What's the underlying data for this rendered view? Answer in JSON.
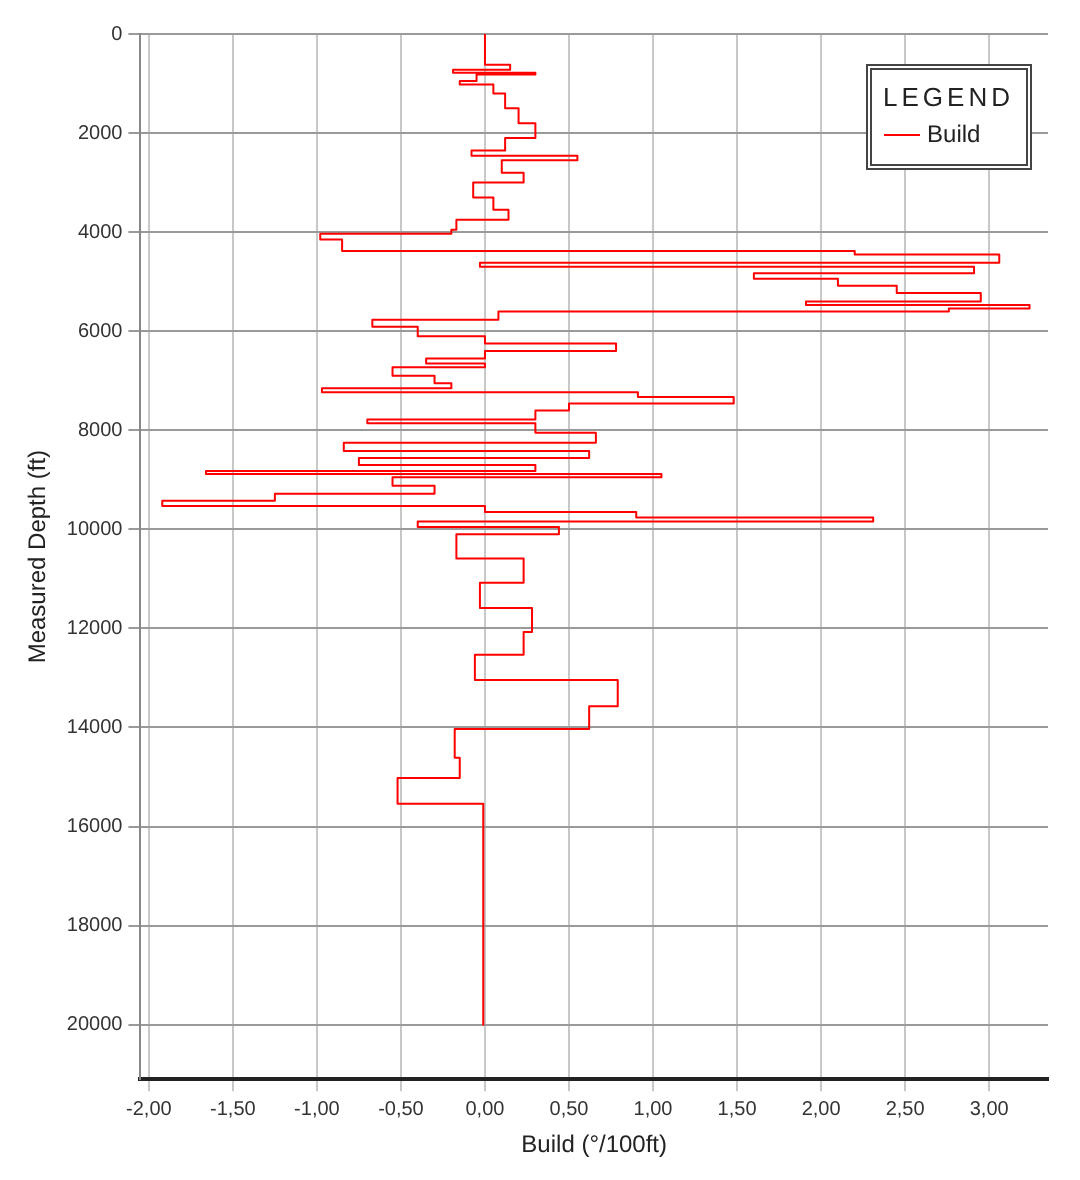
{
  "chart_data": {
    "type": "line",
    "xlabel": "Build (°/100ft)",
    "ylabel": "Measured Depth (ft)",
    "legend_title": "LEGEND",
    "legend": "top right",
    "grid": true,
    "marker": "none",
    "line_style": "solid",
    "xlim": [
      -2.05,
      3.35
    ],
    "ylim": [
      21100,
      0
    ],
    "xticks": [
      {
        "value": -2,
        "label": "-2,00"
      },
      {
        "value": -1.5,
        "label": "-1,50"
      },
      {
        "value": -1,
        "label": "-1,00"
      },
      {
        "value": -0.5,
        "label": "-0,50"
      },
      {
        "value": 0,
        "label": "0,00"
      },
      {
        "value": 0.5,
        "label": "0,50"
      },
      {
        "value": 1,
        "label": "1,00"
      },
      {
        "value": 1.5,
        "label": "1,50"
      },
      {
        "value": 2,
        "label": "2,00"
      },
      {
        "value": 2.5,
        "label": "2,50"
      },
      {
        "value": 3,
        "label": "3,00"
      }
    ],
    "yticks": [
      0,
      2000,
      4000,
      6000,
      8000,
      10000,
      12000,
      14000,
      16000,
      18000,
      20000
    ],
    "series": [
      {
        "name": "Build",
        "color": "#ff0000",
        "x": [
          0,
          0,
          0.15,
          0.15,
          -0.19,
          -0.19,
          0.3,
          0.3,
          -0.05,
          -0.05,
          -0.15,
          -0.15,
          0.05,
          0.05,
          0.12,
          0.12,
          0.2,
          0.2,
          0.3,
          0.3,
          0.12,
          0.12,
          -0.08,
          -0.08,
          0.55,
          0.55,
          0.1,
          0.1,
          0.23,
          0.23,
          -0.07,
          -0.07,
          0.05,
          0.05,
          0.14,
          0.14,
          -0.17,
          -0.17,
          -0.2,
          -0.2,
          -0.98,
          -0.98,
          -0.85,
          -0.85,
          2.2,
          2.2,
          3.06,
          3.06,
          -0.03,
          -0.03,
          2.91,
          2.91,
          1.6,
          1.6,
          2.1,
          2.1,
          2.45,
          2.45,
          2.95,
          2.95,
          1.91,
          1.91,
          3.24,
          3.24,
          2.76,
          2.76,
          0.08,
          0.08,
          -0.67,
          -0.67,
          -0.4,
          -0.4,
          0,
          0,
          0.78,
          0.78,
          0,
          0,
          -0.35,
          -0.35,
          0,
          0,
          -0.55,
          -0.55,
          -0.3,
          -0.3,
          -0.2,
          -0.2,
          -0.97,
          -0.97,
          0.91,
          0.91,
          1.48,
          1.48,
          0.5,
          0.5,
          0.3,
          0.3,
          -0.7,
          -0.7,
          0.3,
          0.3,
          0.66,
          0.66,
          -0.84,
          -0.84,
          0.62,
          0.62,
          -0.75,
          -0.75,
          0.3,
          0.3,
          -1.66,
          -1.66,
          1.05,
          1.05,
          -0.55,
          -0.55,
          -0.3,
          -0.3,
          -1.25,
          -1.25,
          -1.92,
          -1.92,
          0,
          0,
          0.9,
          0.9,
          2.31,
          2.31,
          -0.4,
          -0.4,
          0.44,
          0.44,
          -0.17,
          -0.17,
          0.23,
          0.23,
          -0.03,
          -0.03,
          0.28,
          0.28,
          0.23,
          0.23,
          -0.06,
          -0.06,
          0.79,
          0.79,
          0.62,
          0.62,
          -0.18,
          -0.18,
          -0.15,
          -0.15,
          -0.52,
          -0.52,
          -0.01,
          -0.01
        ],
        "values": [
          0,
          620,
          620,
          720,
          720,
          780,
          780,
          820,
          820,
          950,
          950,
          1020,
          1020,
          1200,
          1200,
          1500,
          1500,
          1800,
          1800,
          2100,
          2100,
          2350,
          2350,
          2460,
          2460,
          2550,
          2550,
          2800,
          2800,
          3000,
          3000,
          3300,
          3300,
          3550,
          3550,
          3750,
          3750,
          3950,
          3950,
          4030,
          4030,
          4150,
          4150,
          4380,
          4380,
          4450,
          4450,
          4620,
          4620,
          4700,
          4700,
          4830,
          4830,
          4940,
          4940,
          5080,
          5080,
          5230,
          5230,
          5400,
          5400,
          5470,
          5470,
          5540,
          5540,
          5600,
          5600,
          5770,
          5770,
          5910,
          5910,
          6100,
          6100,
          6250,
          6250,
          6400,
          6400,
          6550,
          6550,
          6650,
          6650,
          6730,
          6730,
          6900,
          6900,
          7050,
          7050,
          7150,
          7150,
          7230,
          7230,
          7330,
          7330,
          7460,
          7460,
          7600,
          7600,
          7780,
          7780,
          7860,
          7860,
          8050,
          8050,
          8250,
          8250,
          8420,
          8420,
          8560,
          8560,
          8700,
          8700,
          8820,
          8820,
          8880,
          8880,
          8950,
          8950,
          9120,
          9120,
          9280,
          9280,
          9420,
          9420,
          9530,
          9530,
          9650,
          9650,
          9760,
          9760,
          9840,
          9840,
          9950,
          9950,
          10100,
          10100,
          10590,
          10590,
          11080,
          11080,
          11590,
          11590,
          12070,
          12070,
          12530,
          12530,
          13040,
          13040,
          13570,
          13570,
          14030,
          14030,
          14610,
          14610,
          15020,
          15020,
          15540,
          15540,
          20000
        ]
      }
    ]
  }
}
